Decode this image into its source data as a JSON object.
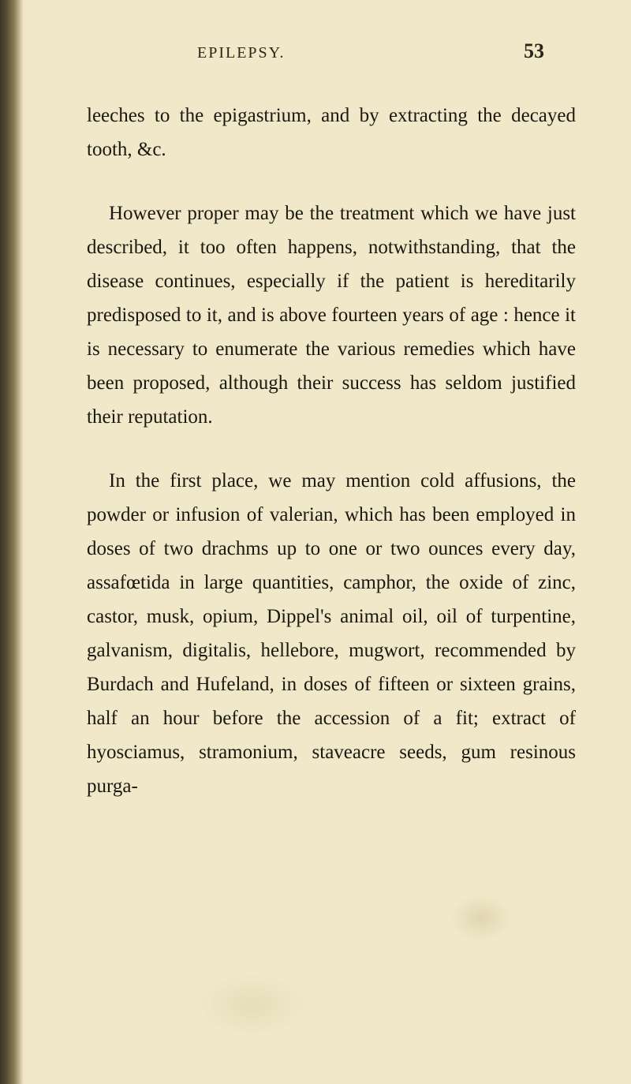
{
  "header": {
    "title": "EPILEPSY.",
    "pageNumber": "53"
  },
  "paragraphs": {
    "p1": "leeches to the epigastrium, and by extracting the decayed tooth, &c.",
    "p2": "However proper may be the treatment which we have just described, it too often happens, notwithstanding, that the disease continues, especially if the patient is hereditarily predisposed to it, and is above fourteen years of age : hence it is necessary to enumerate the various remedies which have been proposed, although their success has seldom justified their reputation.",
    "p3": "In the first place, we may mention cold affusions, the powder or infusion of valerian, which has been employed in doses of two drachms up to one or two ounces every day, assafœtida in large quantities, camphor, the oxide of zinc, castor, musk, opium, Dippel's animal oil, oil of turpentine, galvanism, digitalis, hellebore, mugwort, recommended by Burdach and Hufeland, in doses of fifteen or sixteen grains, half an hour before the accession of a fit; extract of hyosciamus, stramonium, staveacre seeds, gum resinous purga-"
  },
  "style": {
    "backgroundColor": "#f0e8c8",
    "textColor": "#1a1810",
    "headerColor": "#2a2518",
    "bodyFontSize": 25,
    "headerFontSize": 20,
    "pageNumberFontSize": 26,
    "lineHeight": 1.72
  }
}
